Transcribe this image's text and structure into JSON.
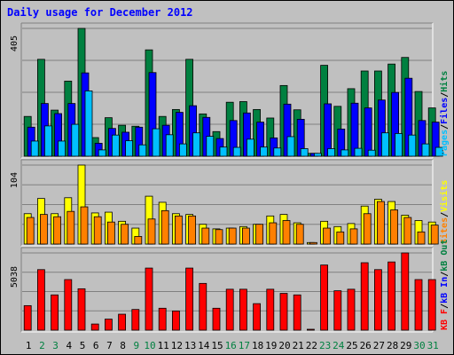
{
  "title": "Daily usage for December 2012",
  "colors": {
    "hits": "#008040",
    "files": "#0000ff",
    "pages": "#00c0ff",
    "visits": "#ffff00",
    "sites": "#ff8000",
    "kb_in": "#008040",
    "kb_out": "#0000ff",
    "kb_f": "#ff0000",
    "bg": "#c0c0c0",
    "weekday_label": "#000000",
    "weekend_label": "#008040"
  },
  "chart_data": [
    {
      "type": "bar",
      "panel": "top",
      "scale_label": "405",
      "ylim": [
        0,
        405
      ],
      "legend": [
        {
          "text": "Pages",
          "color": "#00c0ff"
        },
        {
          "text": "/",
          "color": "#000000"
        },
        {
          "text": "Files",
          "color": "#0000ff"
        },
        {
          "text": "/",
          "color": "#000000"
        },
        {
          "text": "Hits",
          "color": "#008040"
        }
      ],
      "categories": [
        "1",
        "2",
        "3",
        "4",
        "5",
        "6",
        "7",
        "8",
        "9",
        "10",
        "11",
        "12",
        "13",
        "14",
        "15",
        "16",
        "17",
        "18",
        "19",
        "20",
        "21",
        "22",
        "23",
        "24",
        "25",
        "26",
        "27",
        "28",
        "29",
        "30",
        "31"
      ],
      "series": [
        {
          "name": "Hits",
          "color": "#008040",
          "values": [
            126,
            307,
            146,
            238,
            405,
            59,
            122,
            98,
            95,
            337,
            126,
            148,
            307,
            134,
            78,
            171,
            173,
            148,
            121,
            224,
            147,
            9,
            288,
            158,
            214,
            270,
            270,
            292,
            313,
            205,
            153
          ]
        },
        {
          "name": "Files",
          "color": "#0000ff",
          "values": [
            92,
            167,
            135,
            167,
            264,
            41,
            88,
            76,
            92,
            265,
            98,
            139,
            160,
            123,
            56,
            113,
            137,
            108,
            58,
            165,
            117,
            9,
            166,
            86,
            168,
            153,
            178,
            202,
            247,
            113,
            108
          ]
        },
        {
          "name": "Pages",
          "color": "#00c0ff",
          "values": [
            48,
            96,
            48,
            101,
            207,
            20,
            67,
            49,
            36,
            87,
            68,
            39,
            74,
            63,
            29,
            28,
            54,
            29,
            26,
            62,
            24,
            9,
            24,
            20,
            25,
            19,
            74,
            72,
            67,
            39,
            28
          ]
        }
      ]
    },
    {
      "type": "bar",
      "panel": "middle",
      "scale_label": "104",
      "ylim": [
        0,
        104
      ],
      "legend": [
        {
          "text": "Sites",
          "color": "#ff8000"
        },
        {
          "text": "/",
          "color": "#000000"
        },
        {
          "text": "Visits",
          "color": "#ffff00"
        }
      ],
      "categories": [
        "1",
        "2",
        "3",
        "4",
        "5",
        "6",
        "7",
        "8",
        "9",
        "10",
        "11",
        "12",
        "13",
        "14",
        "15",
        "16",
        "17",
        "18",
        "19",
        "20",
        "21",
        "22",
        "23",
        "24",
        "25",
        "26",
        "27",
        "28",
        "29",
        "30",
        "31"
      ],
      "series": [
        {
          "name": "Visits",
          "color": "#ffff00",
          "values": [
            40,
            60,
            40,
            61,
            104,
            41,
            42,
            30,
            21,
            63,
            55,
            40,
            39,
            26,
            20,
            21,
            23,
            26,
            37,
            39,
            28,
            2,
            30,
            23,
            27,
            50,
            59,
            56,
            38,
            31,
            29
          ]
        },
        {
          "name": "Sites",
          "color": "#ff8000",
          "values": [
            35,
            39,
            36,
            43,
            49,
            36,
            29,
            26,
            10,
            33,
            44,
            37,
            37,
            21,
            19,
            21,
            21,
            26,
            28,
            31,
            26,
            2,
            21,
            16,
            20,
            40,
            56,
            45,
            35,
            16,
            25
          ]
        }
      ]
    },
    {
      "type": "bar",
      "panel": "bottom",
      "scale_label": "5038",
      "ylim": [
        0,
        5038
      ],
      "legend": [
        {
          "text": "KB F",
          "color": "#ff0000"
        },
        {
          "text": "/",
          "color": "#000000"
        },
        {
          "text": "kB In",
          "color": "#0000ff"
        },
        {
          "text": "/",
          "color": "#000000"
        },
        {
          "text": "kB Out",
          "color": "#008040"
        }
      ],
      "categories": [
        "1",
        "2",
        "3",
        "4",
        "5",
        "6",
        "7",
        "8",
        "9",
        "10",
        "11",
        "12",
        "13",
        "14",
        "15",
        "16",
        "17",
        "18",
        "19",
        "20",
        "21",
        "22",
        "23",
        "24",
        "25",
        "26",
        "27",
        "28",
        "29",
        "30",
        "31"
      ],
      "series": [
        {
          "name": "KB F",
          "color": "#ff0000",
          "values": [
            1600,
            3950,
            2300,
            3300,
            2700,
            400,
            720,
            1040,
            1350,
            4050,
            1430,
            1250,
            4050,
            3050,
            1430,
            2670,
            2670,
            1730,
            2670,
            2400,
            2300,
            30,
            4250,
            2570,
            2670,
            4400,
            3950,
            4450,
            5038,
            3300,
            3300
          ]
        }
      ]
    }
  ],
  "x_axis": {
    "labels": [
      "1",
      "2",
      "3",
      "4",
      "5",
      "6",
      "7",
      "8",
      "9",
      "10",
      "11",
      "12",
      "13",
      "14",
      "15",
      "16",
      "17",
      "18",
      "19",
      "20",
      "21",
      "22",
      "23",
      "24",
      "25",
      "26",
      "27",
      "28",
      "29",
      "30",
      "31"
    ],
    "weekend": [
      1,
      2,
      8,
      9,
      15,
      16,
      22,
      23,
      29,
      30
    ]
  }
}
